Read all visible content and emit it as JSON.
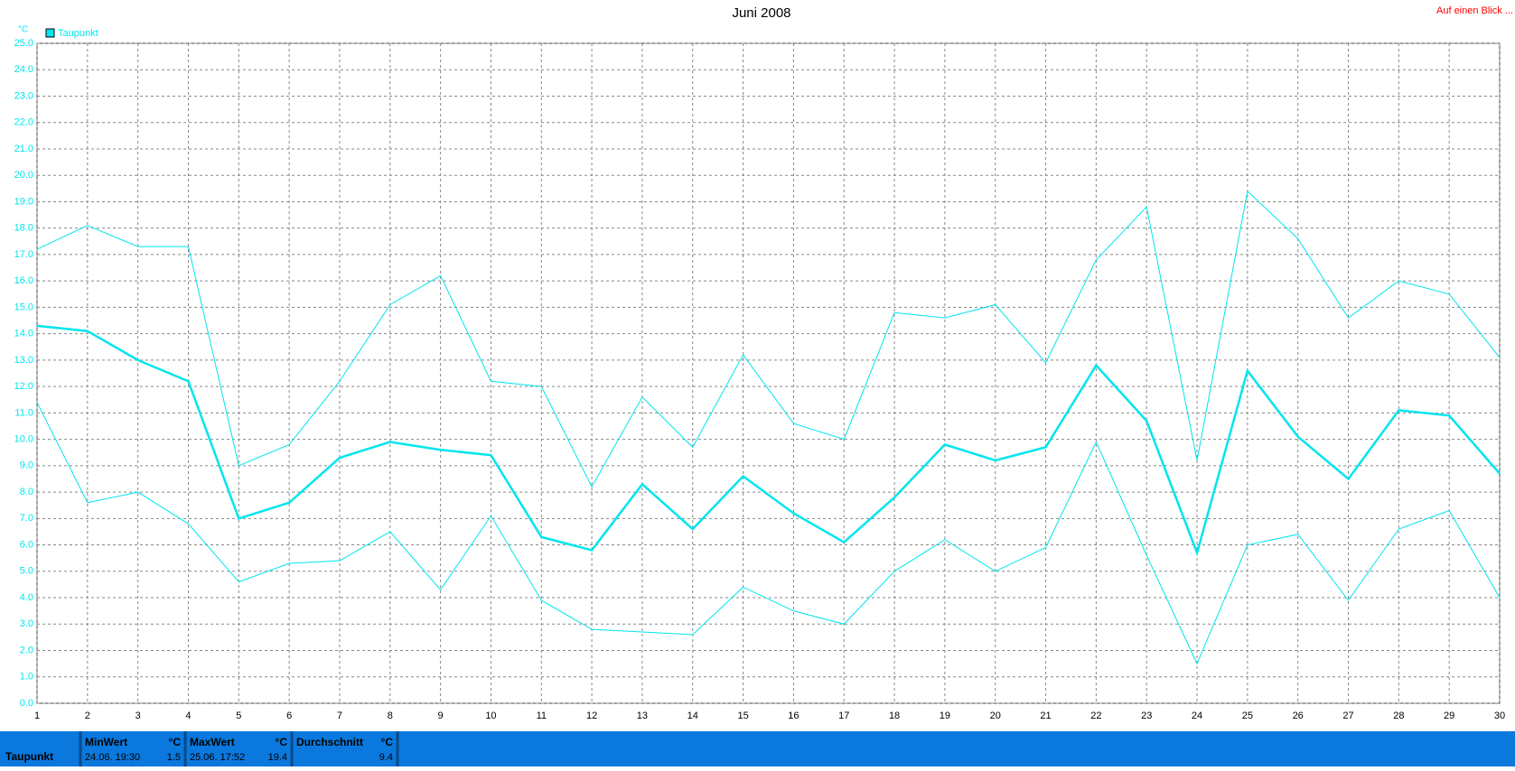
{
  "chart_data": {
    "type": "line",
    "title": "Juni 2008",
    "ylabel": "°C",
    "x": [
      1,
      2,
      3,
      4,
      5,
      6,
      7,
      8,
      9,
      10,
      11,
      12,
      13,
      14,
      15,
      16,
      17,
      18,
      19,
      20,
      21,
      22,
      23,
      24,
      25,
      26,
      27,
      28,
      29,
      30
    ],
    "xlim": [
      1,
      30
    ],
    "xticks": [
      1,
      2,
      3,
      4,
      5,
      6,
      7,
      8,
      9,
      10,
      11,
      12,
      13,
      14,
      15,
      16,
      17,
      18,
      19,
      20,
      21,
      22,
      23,
      24,
      25,
      26,
      27,
      28,
      29,
      30
    ],
    "ylim": [
      0,
      25
    ],
    "yticks": [
      {
        "value": 0,
        "label": "0.0"
      },
      {
        "value": 1,
        "label": "1.0"
      },
      {
        "value": 2,
        "label": "2.0"
      },
      {
        "value": 3,
        "label": "3.0"
      },
      {
        "value": 4,
        "label": "4.0"
      },
      {
        "value": 5,
        "label": "5.0"
      },
      {
        "value": 6,
        "label": "6.0"
      },
      {
        "value": 7,
        "label": "7.0"
      },
      {
        "value": 8,
        "label": "8.0"
      },
      {
        "value": 9,
        "label": "9.0"
      },
      {
        "value": 10,
        "label": "10.0"
      },
      {
        "value": 11,
        "label": "11.0"
      },
      {
        "value": 12,
        "label": "12.0"
      },
      {
        "value": 13,
        "label": "13.0"
      },
      {
        "value": 14,
        "label": "14.0"
      },
      {
        "value": 15,
        "label": "15.0"
      },
      {
        "value": 16,
        "label": "16.0"
      },
      {
        "value": 17,
        "label": "17.0"
      },
      {
        "value": 18,
        "label": "18.0"
      },
      {
        "value": 19,
        "label": "19.0"
      },
      {
        "value": 20,
        "label": "20.0"
      },
      {
        "value": 21,
        "label": "21.0"
      },
      {
        "value": 22,
        "label": "22.0"
      },
      {
        "value": 23,
        "label": "23.0"
      },
      {
        "value": 24,
        "label": "24.0"
      },
      {
        "value": 25,
        "label": "25.0"
      }
    ],
    "grid": true,
    "series": [
      {
        "name": "Taupunkt",
        "color": "#00e5ee",
        "values": [
          14.3,
          14.1,
          13.0,
          12.2,
          7.0,
          7.6,
          9.3,
          9.9,
          9.6,
          9.4,
          6.3,
          5.8,
          8.3,
          6.6,
          8.6,
          7.2,
          6.1,
          7.8,
          9.8,
          9.2,
          9.7,
          12.8,
          10.7,
          5.7,
          12.6,
          10.1,
          8.5,
          11.1,
          10.9,
          8.7
        ]
      },
      {
        "color": "#00e5ee",
        "values": [
          17.2,
          18.1,
          17.3,
          17.3,
          9.0,
          9.8,
          12.2,
          15.1,
          16.2,
          12.2,
          12.0,
          8.2,
          11.6,
          9.7,
          13.2,
          10.6,
          10.0,
          14.8,
          14.6,
          15.1,
          12.9,
          16.8,
          18.8,
          9.2,
          19.4,
          17.6,
          14.6,
          16.0,
          15.5,
          13.1
        ]
      },
      {
        "color": "#00e5ee",
        "values": [
          11.4,
          7.6,
          8.0,
          6.8,
          4.6,
          5.3,
          5.4,
          6.5,
          4.3,
          7.1,
          3.9,
          2.8,
          2.7,
          2.6,
          4.4,
          3.5,
          3.0,
          5.0,
          6.2,
          5.0,
          5.9,
          9.9,
          5.6,
          1.5,
          6.0,
          6.4,
          3.9,
          6.6,
          7.3,
          4.0
        ]
      }
    ]
  },
  "link": "Auf einen Blick ...",
  "summary": {
    "label": "Taupunkt",
    "columns": [
      {
        "title": "MinWert",
        "unit": "°C",
        "time": "24.06.  19:30",
        "value": 1.5
      },
      {
        "title": "MaxWert",
        "unit": "°C",
        "time": "25.06.  17:52",
        "value": 19.4
      },
      {
        "title": "Durchschnitt",
        "unit": "°C",
        "value": 9.4
      }
    ]
  }
}
